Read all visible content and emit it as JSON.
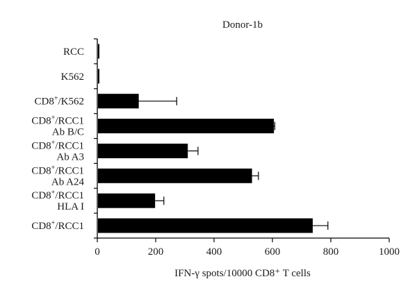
{
  "chart_data": {
    "type": "bar",
    "orientation": "horizontal",
    "title": "Donor-1b",
    "xlabel": "IFN-γ spots/10000 CD8⁺ T cells",
    "xlim": [
      0,
      1000
    ],
    "xticks": [
      0,
      200,
      400,
      600,
      800,
      1000
    ],
    "grid": false,
    "bar_color": "#000000",
    "categories": [
      {
        "lines": [
          [
            "RCC",
            ""
          ]
        ]
      },
      {
        "lines": [
          [
            "K562",
            ""
          ]
        ]
      },
      {
        "lines": [
          [
            "CD8",
            "+",
            "/K562"
          ]
        ]
      },
      {
        "lines": [
          [
            "CD8",
            "+",
            "/RCC1"
          ],
          [
            "Ab B/C",
            ""
          ]
        ]
      },
      {
        "lines": [
          [
            "CD8",
            "+",
            "/RCC1"
          ],
          [
            "Ab A3",
            ""
          ]
        ]
      },
      {
        "lines": [
          [
            "CD8",
            "+",
            "/RCC1"
          ],
          [
            "Ab A24",
            ""
          ]
        ]
      },
      {
        "lines": [
          [
            "CD8",
            "+",
            "/RCC1"
          ],
          [
            "HLA I",
            ""
          ]
        ]
      },
      {
        "lines": [
          [
            "CD8",
            "+",
            "/RCC1"
          ]
        ]
      }
    ],
    "category_names": [
      "RCC",
      "K562",
      "CD8+/K562",
      "CD8+/RCC1 Ab B/C",
      "CD8+/RCC1 Ab A3",
      "CD8+/RCC1 Ab A24",
      "CD8+/RCC1 HLA I",
      "CD8+/RCC1"
    ],
    "values": [
      5,
      5,
      142,
      605,
      310,
      530,
      198,
      738
    ],
    "errors": [
      0,
      0,
      130,
      3,
      35,
      22,
      30,
      52
    ]
  }
}
